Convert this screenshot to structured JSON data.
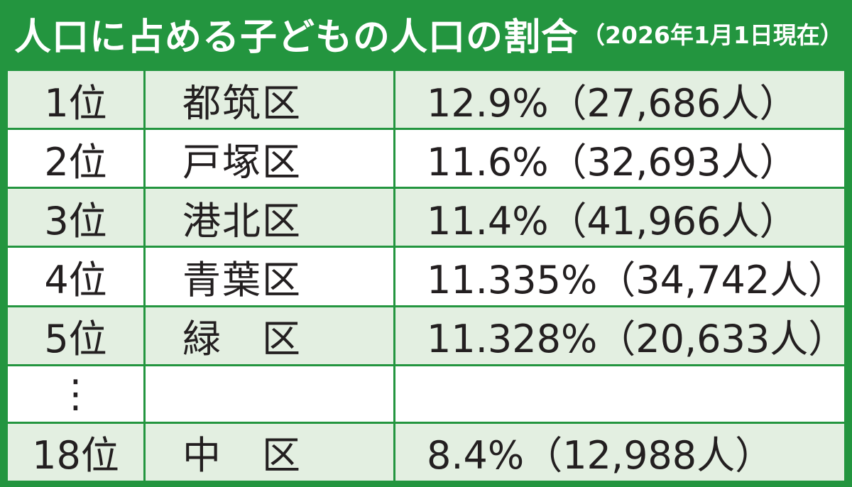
{
  "header": {
    "title": "人口に占める子どもの人口の割合",
    "subtitle": "（2026年1月1日現在）"
  },
  "table": {
    "rows": [
      {
        "rank": "1位",
        "ward": "都筑区",
        "value": "12.9%（27,686人）"
      },
      {
        "rank": "2位",
        "ward": "戸塚区",
        "value": "11.6%（32,693人）"
      },
      {
        "rank": "3位",
        "ward": "港北区",
        "value": "11.4%（41,966人）"
      },
      {
        "rank": "4位",
        "ward": "青葉区",
        "value": "11.335%（34,742人）"
      },
      {
        "rank": "5位",
        "ward": "緑　区",
        "value": "11.328%（20,633人）"
      },
      {
        "rank": "⋮"
      },
      {
        "rank": "18位",
        "ward": "中　区",
        "value": "8.4%（12,988人）"
      }
    ]
  }
}
